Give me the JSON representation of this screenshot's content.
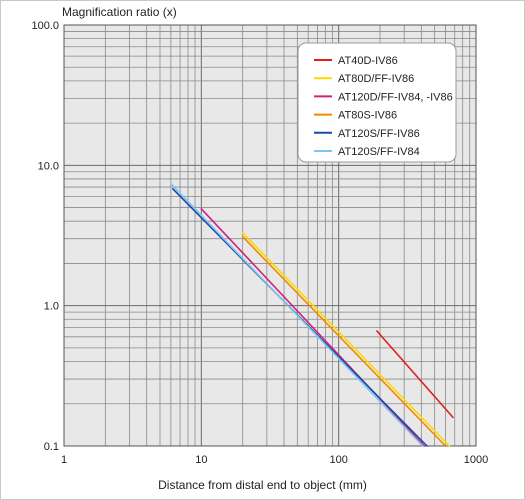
{
  "chart_data": {
    "type": "line",
    "title": "",
    "ylabel": "Magnification ratio (x)",
    "xlabel": "Distance from distal end to object (mm)",
    "x_scale": "log",
    "y_scale": "log",
    "xlim": [
      1,
      1000
    ],
    "ylim": [
      0.1,
      100
    ],
    "x_ticks": [
      "1",
      "10",
      "100",
      "1000"
    ],
    "y_ticks": [
      "100.0",
      "10.0",
      "1.0",
      "0.1"
    ],
    "grid": true,
    "legend_position": "top-right",
    "series": [
      {
        "name": "AT40D-IV86",
        "color": "#e0201b",
        "points": [
          [
            190,
            0.66
          ],
          [
            680,
            0.16
          ]
        ]
      },
      {
        "name": "AT80D/FF-IV86",
        "color": "#ffd800",
        "points": [
          [
            20,
            3.3
          ],
          [
            640,
            0.1
          ]
        ]
      },
      {
        "name": "AT120D/FF-IV84, -IV86",
        "color": "#d0207c",
        "points": [
          [
            10,
            4.9
          ],
          [
            420,
            0.1
          ]
        ]
      },
      {
        "name": "AT80S-IV86",
        "color": "#f08a00",
        "points": [
          [
            20,
            3.1
          ],
          [
            600,
            0.1
          ]
        ]
      },
      {
        "name": "AT120S/FF-IV86",
        "color": "#1a4aa8",
        "points": [
          [
            6.2,
            6.8
          ],
          [
            440,
            0.1
          ]
        ]
      },
      {
        "name": "AT120S/FF-IV84",
        "color": "#7ec4ee",
        "points": [
          [
            6.0,
            7.4
          ],
          [
            410,
            0.1
          ]
        ]
      }
    ]
  }
}
